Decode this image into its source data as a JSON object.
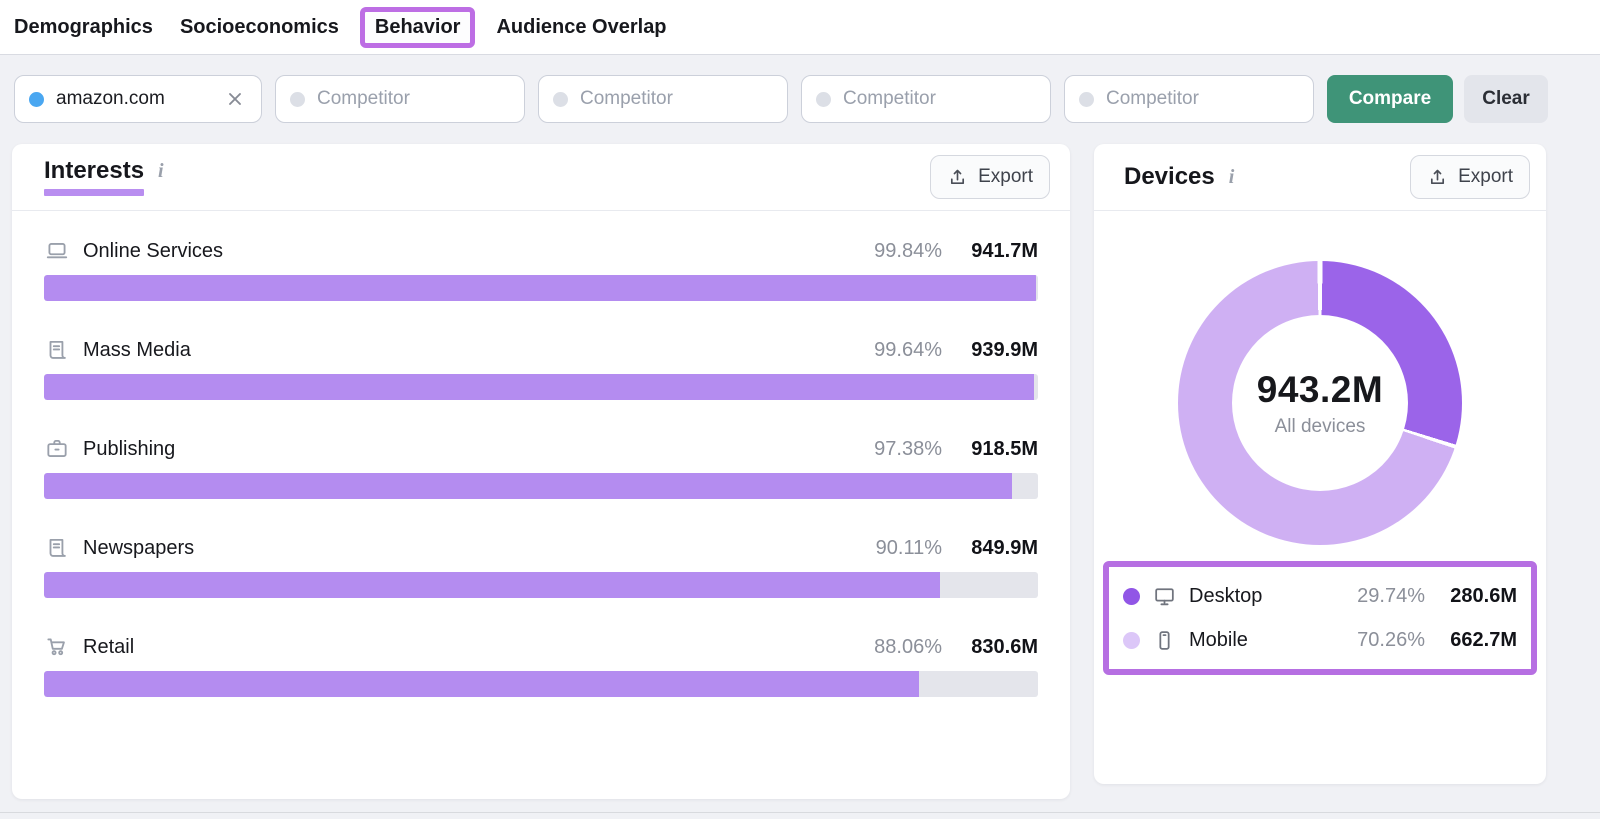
{
  "nav": {
    "tabs": [
      {
        "label": "Demographics",
        "highlighted": false
      },
      {
        "label": "Socioeconomics",
        "highlighted": false
      },
      {
        "label": "Behavior",
        "highlighted": true
      },
      {
        "label": "Audience Overlap",
        "highlighted": false
      }
    ]
  },
  "filters": {
    "domain_chip": {
      "label": "amazon.com"
    },
    "competitors": [
      {
        "placeholder": "Competitor"
      },
      {
        "placeholder": "Competitor"
      },
      {
        "placeholder": "Competitor"
      },
      {
        "placeholder": "Competitor"
      }
    ],
    "compare_button": "Compare",
    "clear_button": "Clear"
  },
  "interests": {
    "title": "Interests",
    "export_button": "Export",
    "rows": [
      {
        "icon": "laptop-icon",
        "label": "Online Services",
        "percent": "99.84%",
        "percent_num": 99.84,
        "value": "941.7M"
      },
      {
        "icon": "news-icon",
        "label": "Mass Media",
        "percent": "99.64%",
        "percent_num": 99.64,
        "value": "939.9M"
      },
      {
        "icon": "briefcase-icon",
        "label": "Publishing",
        "percent": "97.38%",
        "percent_num": 97.38,
        "value": "918.5M"
      },
      {
        "icon": "news-icon",
        "label": "Newspapers",
        "percent": "90.11%",
        "percent_num": 90.11,
        "value": "849.9M"
      },
      {
        "icon": "cart-icon",
        "label": "Retail",
        "percent": "88.06%",
        "percent_num": 88.06,
        "value": "830.6M"
      }
    ]
  },
  "devices": {
    "title": "Devices",
    "export_button": "Export",
    "center_value": "943.2M",
    "center_label": "All devices",
    "legend": [
      {
        "icon": "desktop-icon",
        "label": "Desktop",
        "percent": "29.74%",
        "percent_num": 29.74,
        "value": "280.6M",
        "dot_color": "#9156e6",
        "segment_color": "#9b64e9"
      },
      {
        "icon": "mobile-icon",
        "label": "Mobile",
        "percent": "70.26%",
        "percent_num": 70.26,
        "value": "662.7M",
        "dot_color": "#dcc7f8",
        "segment_color": "#cfb0f3"
      }
    ]
  },
  "colors": {
    "bar_fill": "#b48cf0",
    "bar_track": "#e4e5eb",
    "annotation_purple": "#bb6ce2",
    "title_underline": "#b98ef0",
    "compare_green": "#3f9478",
    "domain_dot_blue": "#4aa7f1"
  },
  "chart_data": [
    {
      "type": "bar",
      "title": "Interests",
      "orientation": "horizontal",
      "categories": [
        "Online Services",
        "Mass Media",
        "Publishing",
        "Newspapers",
        "Retail"
      ],
      "values": [
        99.84,
        99.64,
        97.38,
        90.11,
        88.06
      ],
      "value_labels": [
        "941.7M",
        "939.9M",
        "918.5M",
        "849.9M",
        "830.6M"
      ],
      "unit": "%",
      "xlim": [
        0,
        100
      ],
      "grid": false
    },
    {
      "type": "pie",
      "title": "Devices",
      "donut": true,
      "labels": [
        "Desktop",
        "Mobile"
      ],
      "values": [
        29.74,
        70.26
      ],
      "value_labels": [
        "280.6M",
        "662.7M"
      ],
      "center_total": "943.2M",
      "center_caption": "All devices",
      "legend_position": "bottom"
    }
  ]
}
